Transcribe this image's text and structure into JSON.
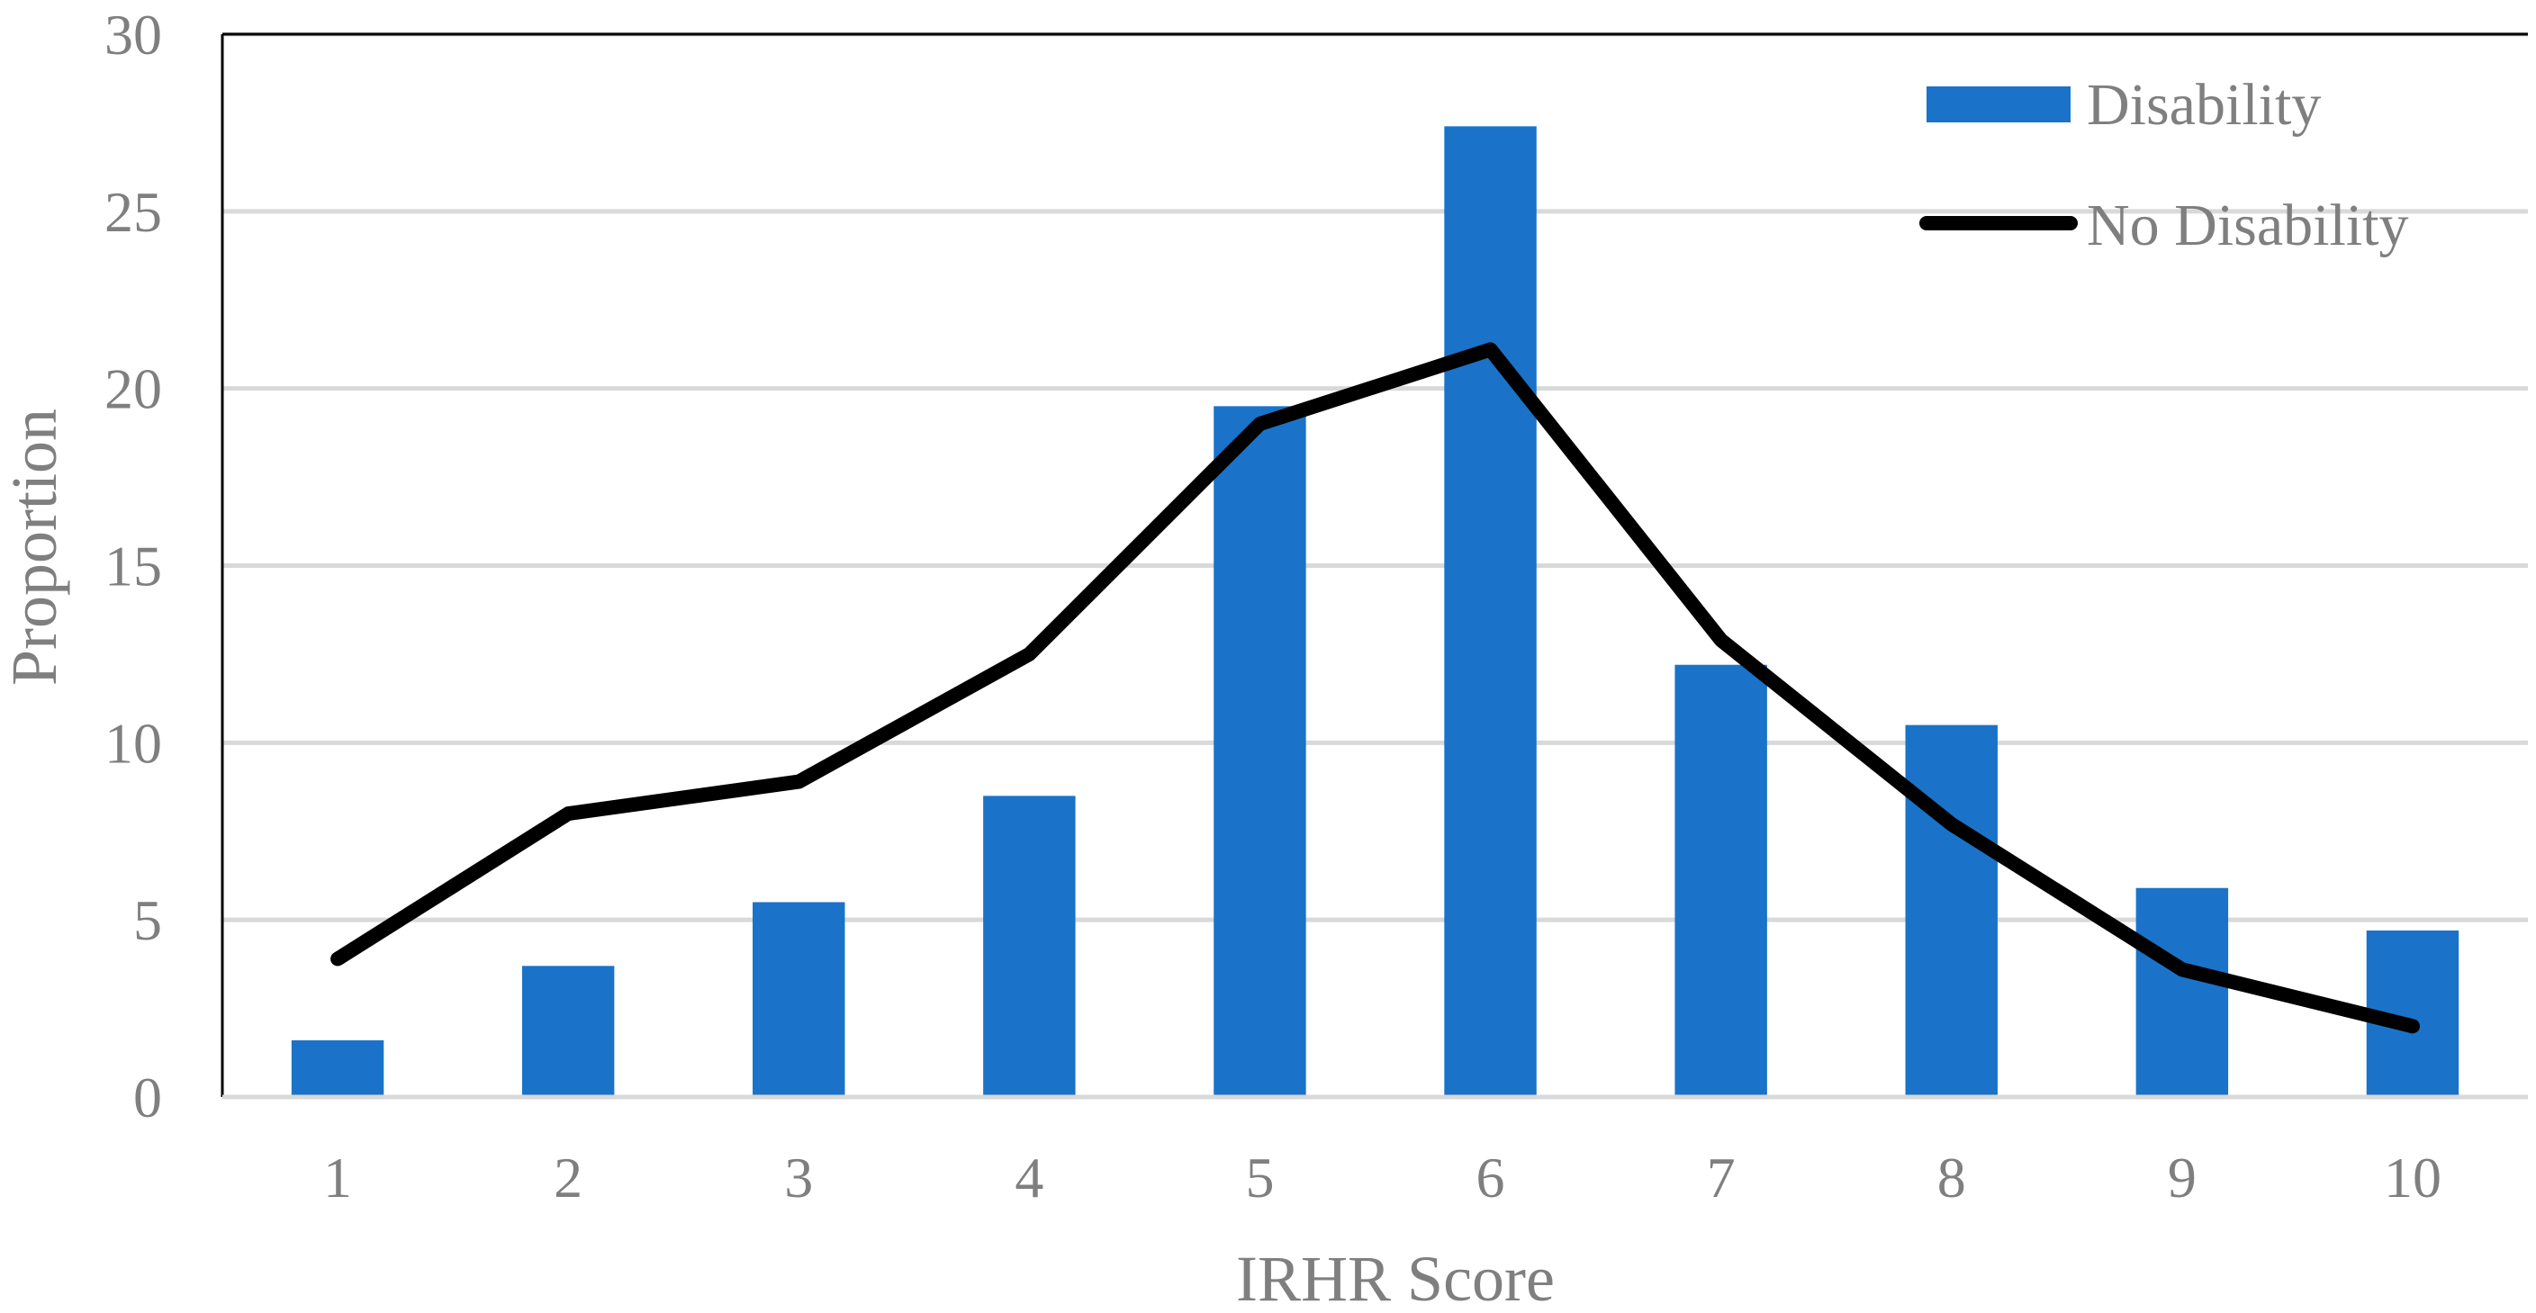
{
  "chart_data": {
    "type": "bar",
    "title": "",
    "xlabel": "IRHR Score",
    "ylabel": "Proportion",
    "categories": [
      "1",
      "2",
      "3",
      "4",
      "5",
      "6",
      "7",
      "8",
      "9",
      "10"
    ],
    "ylim": [
      0,
      30
    ],
    "yticks": [
      "0",
      "5",
      "10",
      "15",
      "20",
      "25",
      "30"
    ],
    "grid": true,
    "legend_position": "top-right",
    "series": [
      {
        "name": "Disability",
        "kind": "bar",
        "color": "#1a73c8",
        "values": [
          1.6,
          3.7,
          5.5,
          8.5,
          19.5,
          27.4,
          12.2,
          10.5,
          5.9,
          4.7
        ]
      },
      {
        "name": "No Disability",
        "kind": "line",
        "color": "#000000",
        "values": [
          3.9,
          8.0,
          8.9,
          12.5,
          19.0,
          21.1,
          12.9,
          7.7,
          3.6,
          2.0
        ]
      }
    ]
  }
}
